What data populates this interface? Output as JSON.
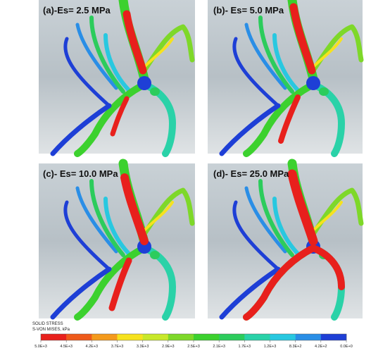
{
  "panels": [
    {
      "label": "(a)-Es= 2.5 MPa"
    },
    {
      "label": "(b)- Es= 5.0 MPa"
    },
    {
      "label": "(c)- Es= 10.0 MPa"
    },
    {
      "label": "(d)- Es= 25.0 MPa"
    }
  ],
  "colorbar": {
    "title": "SOLID STRESS",
    "subtitle": "S-VON MISES, kPa",
    "colors": [
      "#e8201c",
      "#ee5a1a",
      "#f49a1c",
      "#f6e21e",
      "#c8e82a",
      "#7ed829",
      "#3cd12e",
      "#2ccc5c",
      "#2ad2a8",
      "#28c8e0",
      "#2a8ee6",
      "#1e3fd6"
    ],
    "ticks": [
      "5.0E+3",
      "4.5E+3",
      "4.2E+3",
      "3.7E+3",
      "3.3E+3",
      "2.9E+3",
      "2.5E+3",
      "2.1E+3",
      "1.7E+3",
      "1.2E+3",
      "8.3E+2",
      "4.2E+2",
      "0.0E+0"
    ]
  }
}
